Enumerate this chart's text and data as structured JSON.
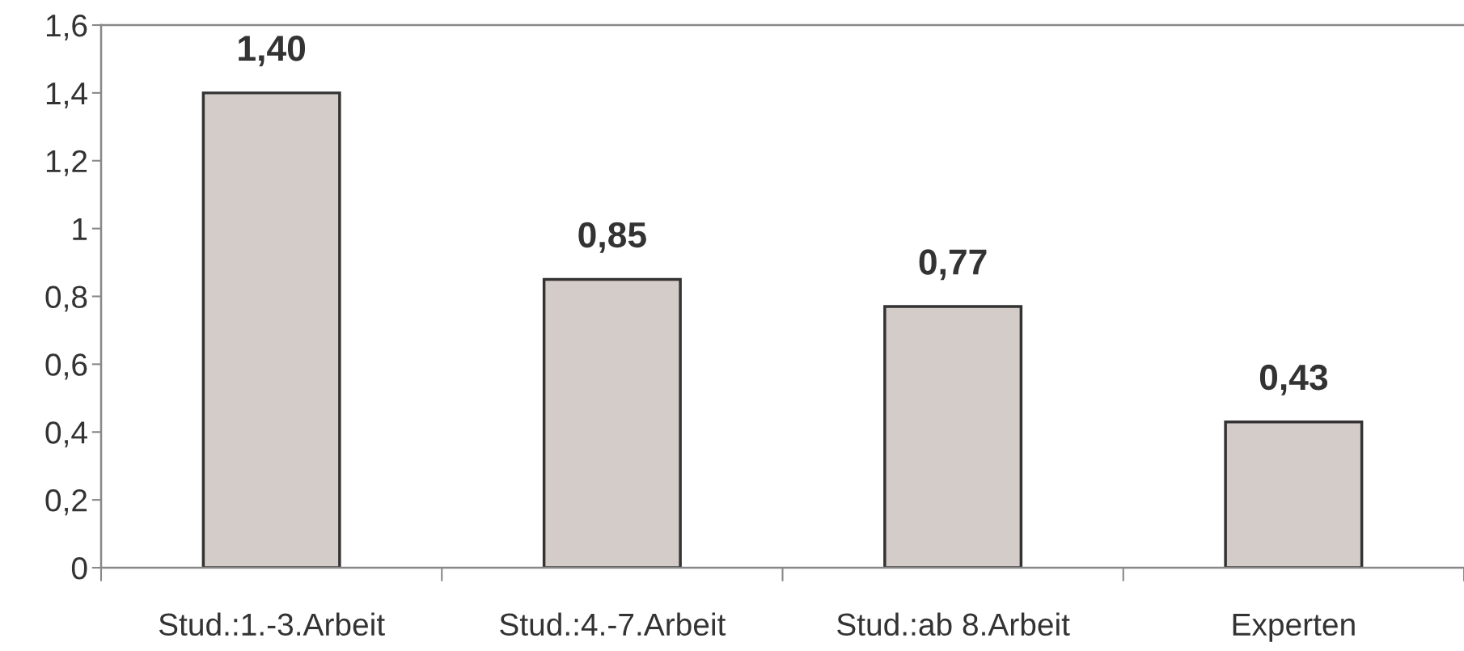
{
  "chart_data": {
    "type": "bar",
    "categories": [
      "Stud.:1.-3.Arbeit",
      "Stud.:4.-7.Arbeit",
      "Stud.:ab 8.Arbeit",
      "Experten"
    ],
    "values": [
      1.4,
      0.85,
      0.77,
      0.43
    ],
    "value_labels": [
      "1,40",
      "0,85",
      "0,77",
      "0,43"
    ],
    "color": "#d4ccc8",
    "ylim": [
      0,
      1.6
    ],
    "yticks": [
      {
        "value": 0,
        "label": "0"
      },
      {
        "value": 0.2,
        "label": "0,2"
      },
      {
        "value": 0.4,
        "label": "0,4"
      },
      {
        "value": 0.6,
        "label": "0,6"
      },
      {
        "value": 0.8,
        "label": "0,8"
      },
      {
        "value": 1,
        "label": "1"
      },
      {
        "value": 1.2,
        "label": "1,2"
      },
      {
        "value": 1.4,
        "label": "1,4"
      },
      {
        "value": 1.6,
        "label": "1,6"
      }
    ],
    "grid": false,
    "legend": false
  }
}
